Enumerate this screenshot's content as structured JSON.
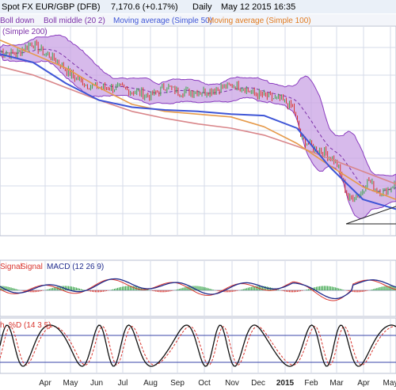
{
  "chart_data": [
    {
      "type": "line",
      "panel": "price",
      "header": [
        {
          "text": "Spot FX EUR/GBP (DFB)",
          "color": "#1a1a1a"
        },
        {
          "text": "7,170.6 (+0.17%)",
          "color": "#1a1a1a"
        },
        {
          "text": "Daily",
          "color": "#1a1a1a"
        },
        {
          "text": "May 12 2015 16:35",
          "color": "#1a1a1a"
        }
      ],
      "legend": [
        {
          "text": "Boll down",
          "color": "#7b2fa8"
        },
        {
          "text": "Boll middle (20 2)",
          "color": "#7b2fa8"
        },
        {
          "text": "Moving average (Simple 50)",
          "color": "#3e55d6"
        },
        {
          "text": "Moving average (Simple 100)",
          "color": "#e07a1f"
        },
        {
          "text": "(Simple 200)",
          "color": "#7b2fa8"
        }
      ],
      "x_ticks": [
        "Apr",
        "May",
        "Jun",
        "Jul",
        "Aug",
        "Sep",
        "Oct",
        "Nov",
        "Dec",
        "2015",
        "Feb",
        "Mar",
        "Apr",
        "May"
      ],
      "series": [
        {
          "name": "Moving average (Simple 200)",
          "color": "#d9868a",
          "values": [
            0.821,
            0.815,
            0.806,
            0.797,
            0.789,
            0.784,
            0.78,
            0.777,
            0.772,
            0.764,
            0.755,
            0.746,
            0.737
          ]
        },
        {
          "name": "Moving average (Simple 100)",
          "color": "#e69a4a",
          "values": [
            0.84,
            0.83,
            0.82,
            0.806,
            0.794,
            0.789,
            0.787,
            0.785,
            0.778,
            0.766,
            0.75,
            0.735,
            0.726
          ]
        },
        {
          "name": "Moving average (Simple 50)",
          "color": "#3e55d6",
          "values": [
            0.83,
            0.824,
            0.809,
            0.797,
            0.792,
            0.79,
            0.789,
            0.787,
            0.786,
            0.777,
            0.749,
            0.726,
            0.719
          ]
        }
      ],
      "colors": {
        "band_fill": "#c9a3e4",
        "band_edge": "#8a3cbf",
        "bull": "#3aa64a",
        "bear": "#d9352e",
        "grid": "#d6dbe8"
      }
    },
    {
      "type": "line",
      "panel": "macd",
      "legend": [
        {
          "text": "Signal",
          "color": "#d9352e"
        },
        {
          "text": "Signal",
          "color": "#d9352e"
        },
        {
          "text": "MACD (12 26 9)",
          "color": "#1e2a8c"
        }
      ],
      "series": [
        {
          "name": "MACD (12 26 9)",
          "color": "#1e2a8c"
        },
        {
          "name": "Signal",
          "color": "#d9352e"
        }
      ]
    },
    {
      "type": "line",
      "panel": "stochastic",
      "legend": [
        {
          "text": "h. %D (14 3 5)",
          "color": "#d9352e"
        }
      ],
      "series": [
        {
          "name": "%K",
          "color": "#111111"
        },
        {
          "name": "%D",
          "color": "#d9352e"
        }
      ]
    }
  ]
}
